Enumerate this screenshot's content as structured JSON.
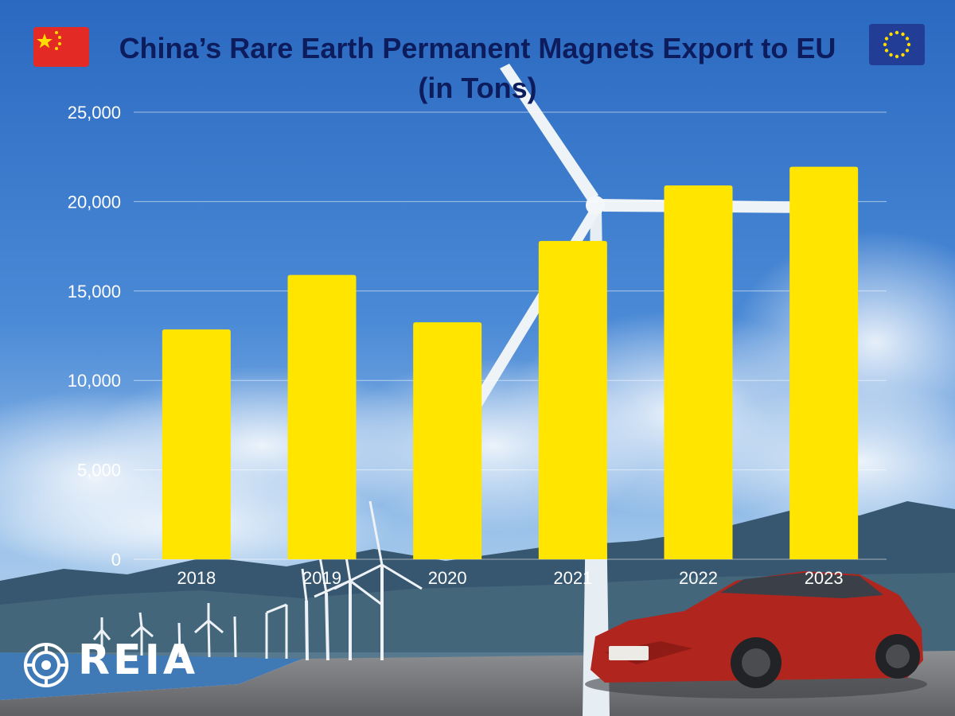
{
  "chart_data": {
    "type": "bar",
    "title_line1": "China’s Rare Earth Permanent Magnets Export to EU",
    "title_line2": "(in Tons)",
    "categories": [
      "2018",
      "2019",
      "2020",
      "2021",
      "2022",
      "2023"
    ],
    "values": [
      12850,
      15900,
      13250,
      17800,
      20900,
      21950
    ],
    "ylim": [
      0,
      25000
    ],
    "yticks": [
      0,
      5000,
      10000,
      15000,
      20000,
      25000
    ],
    "ytick_labels": [
      "0",
      "5,000",
      "10,000",
      "15,000",
      "20,000",
      "25,000"
    ],
    "grid": true,
    "bar_color": "#ffe500"
  },
  "branding": {
    "logo_text": "REIA"
  },
  "flags": {
    "left": "china-flag",
    "right": "eu-flag"
  },
  "colors": {
    "title": "#0d1c5c",
    "sky_top": "#2f6fc4",
    "sky_bottom": "#8fb9e6"
  }
}
